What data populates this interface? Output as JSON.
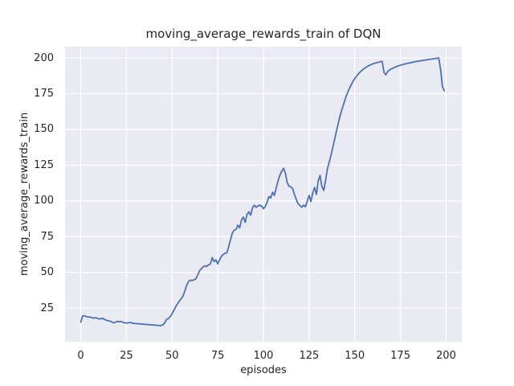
{
  "colors": {
    "figure_background": "#FFFFFF",
    "axes_background": "#EAEAF2",
    "grid_color": "#FFFFFF",
    "text_color": "#262626",
    "line_color": "#4C72B0"
  },
  "chart_data": {
    "type": "line",
    "title": "moving_average_rewards_train of DQN",
    "xlabel": "episodes",
    "ylabel": "moving_average_rewards_train",
    "grid": true,
    "legend_position": "none",
    "xlim": [
      -8.6,
      208.6
    ],
    "ylim": [
      1.4,
      207.9
    ],
    "xticks": [
      0,
      25,
      50,
      75,
      100,
      125,
      150,
      175,
      200
    ],
    "yticks": [
      25,
      50,
      75,
      100,
      125,
      150,
      175,
      200
    ],
    "series": [
      {
        "name": "moving_average_rewards_train",
        "color": "#4C72B0",
        "x_is_index": true,
        "values": [
          15.2,
          19.4,
          19.6,
          19.0,
          18.6,
          18.8,
          18.3,
          17.9,
          18.3,
          17.9,
          17.3,
          17.6,
          17.8,
          17.1,
          16.5,
          16.1,
          15.8,
          15.3,
          14.6,
          15.1,
          15.7,
          15.4,
          15.6,
          15.1,
          14.7,
          14.4,
          14.7,
          14.9,
          14.6,
          14.3,
          14.2,
          14.1,
          13.9,
          13.9,
          13.8,
          13.6,
          13.5,
          13.4,
          13.3,
          13.2,
          13.1,
          13.0,
          12.9,
          12.7,
          12.8,
          13.2,
          14.8,
          17.2,
          17.6,
          19.0,
          21.0,
          23.5,
          26.0,
          28.0,
          30.0,
          31.5,
          33.5,
          37.0,
          41.0,
          43.5,
          44.5,
          44.2,
          44.8,
          45.4,
          48.0,
          51.0,
          52.5,
          53.9,
          54.5,
          54.2,
          55.3,
          55.8,
          60.3,
          57.5,
          58.7,
          55.9,
          58.7,
          61.2,
          62.5,
          63.3,
          63.8,
          68.0,
          73.0,
          77.5,
          79.5,
          80.0,
          83.0,
          81.1,
          86.7,
          88.6,
          85.0,
          90.4,
          92.3,
          90.0,
          95.2,
          97.0,
          95.5,
          96.5,
          97.0,
          96.3,
          94.5,
          96.0,
          99.0,
          103.0,
          102.0,
          106.0,
          103.8,
          109.0,
          114.0,
          118.0,
          120.6,
          122.8,
          119.5,
          112.8,
          110.3,
          109.8,
          108.5,
          104.3,
          101.0,
          98.0,
          96.8,
          95.5,
          97.0,
          95.8,
          99.8,
          103.8,
          99.5,
          105.5,
          109.4,
          104.5,
          114.0,
          117.8,
          110.0,
          107.3,
          114.0,
          122.3,
          127.0,
          132.0,
          137.5,
          143.0,
          149.0,
          154.5,
          159.5,
          164.0,
          168.0,
          172.0,
          175.5,
          178.5,
          181.0,
          183.5,
          185.5,
          187.3,
          188.8,
          190.2,
          191.4,
          192.4,
          193.3,
          194.1,
          194.8,
          195.4,
          195.9,
          196.3,
          196.7,
          197.0,
          197.3,
          197.6,
          190.0,
          188.2,
          190.5,
          191.6,
          192.3,
          192.9,
          193.5,
          194.0,
          194.5,
          194.9,
          195.3,
          195.6,
          195.9,
          196.2,
          196.5,
          196.8,
          197.1,
          197.4,
          197.6,
          197.8,
          198.0,
          198.2,
          198.4,
          198.6,
          198.8,
          199.0,
          199.2,
          199.4,
          199.6,
          199.8,
          199.9,
          192.0,
          180.0,
          177.0
        ]
      }
    ]
  }
}
